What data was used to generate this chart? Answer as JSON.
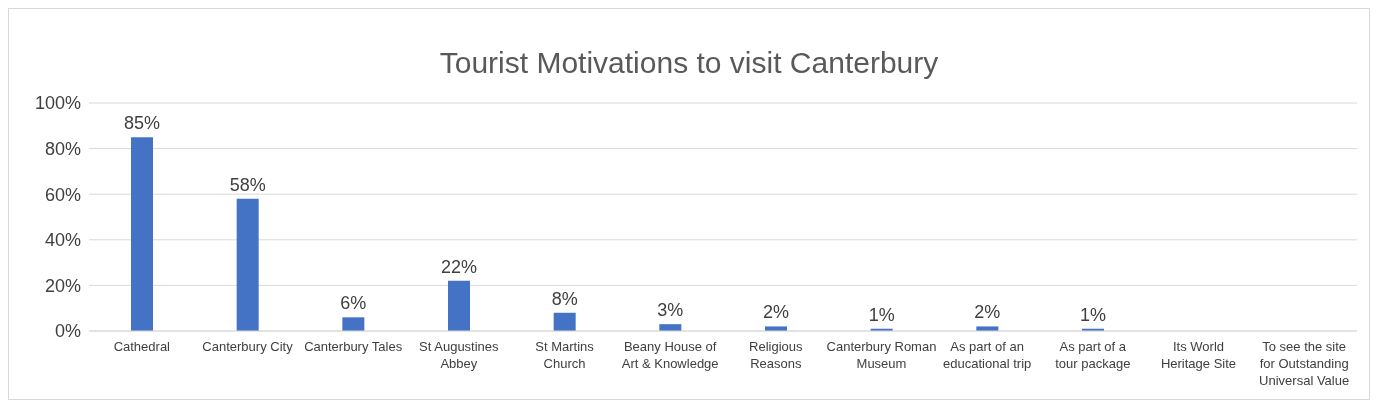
{
  "chart_data": {
    "type": "bar",
    "title": "Tourist Motivations to visit Canterbury",
    "categories": [
      "Cathedral",
      "Canterbury City",
      "Canterbury Tales",
      "St Augustines Abbey",
      "St Martins Church",
      "Beany House of Art & Knowledge",
      "Religious Reasons",
      "Canterbury Roman Museum",
      "As part of an educational trip",
      "As part of a tour package",
      "Its World Heritage Site",
      "To see the site for Outstanding Universal Value"
    ],
    "values": [
      85,
      58,
      6,
      22,
      8,
      3,
      2,
      1,
      2,
      1,
      0,
      0
    ],
    "value_labels": [
      "85%",
      "58%",
      "6%",
      "22%",
      "8%",
      "3%",
      "2%",
      "1%",
      "2%",
      "1%",
      null,
      null
    ],
    "color": "#4472c4",
    "ylim": [
      0,
      100
    ],
    "yticks": [
      {
        "value": 0,
        "label": "0%"
      },
      {
        "value": 20,
        "label": "20%"
      },
      {
        "value": 40,
        "label": "40%"
      },
      {
        "value": 60,
        "label": "60%"
      },
      {
        "value": 80,
        "label": "80%"
      },
      {
        "value": 100,
        "label": "100%"
      }
    ],
    "grid": "y"
  }
}
